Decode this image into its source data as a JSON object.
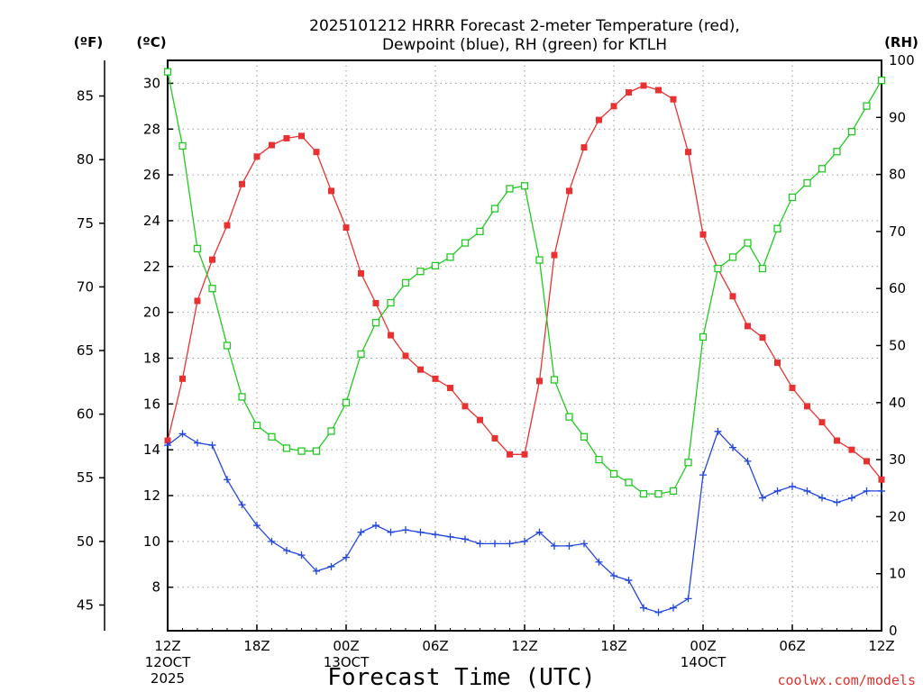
{
  "chart_data": {
    "type": "line",
    "title_lines": [
      "2025101212 HRRR Forecast 2-meter Temperature (red),",
      "Dewpoint (blue), RH (green) for KTLH"
    ],
    "xlabel": "Forecast Time (UTC)",
    "credit": "coolwx.com/models",
    "unit_labels": {
      "f": "(ºF)",
      "c": "(ºC)",
      "rh": "(RH)"
    },
    "x_range": [
      0,
      48
    ],
    "x_ticks": [
      {
        "h": 0,
        "lines": [
          "12Z",
          "12OCT",
          "2025"
        ]
      },
      {
        "h": 6,
        "lines": [
          "18Z"
        ]
      },
      {
        "h": 12,
        "lines": [
          "00Z",
          "13OCT"
        ]
      },
      {
        "h": 18,
        "lines": [
          "06Z"
        ]
      },
      {
        "h": 24,
        "lines": [
          "12Z"
        ]
      },
      {
        "h": 30,
        "lines": [
          "18Z"
        ]
      },
      {
        "h": 36,
        "lines": [
          "00Z",
          "14OCT"
        ]
      },
      {
        "h": 42,
        "lines": [
          "06Z"
        ]
      },
      {
        "h": 48,
        "lines": [
          "12Z"
        ]
      }
    ],
    "ylim_c": [
      6.1,
      31.0
    ],
    "c_ticks": [
      "8",
      "10",
      "12",
      "14",
      "16",
      "18",
      "20",
      "22",
      "24",
      "26",
      "28",
      "30"
    ],
    "f_ticks": [
      "45",
      "50",
      "55",
      "60",
      "65",
      "70",
      "75",
      "80",
      "85"
    ],
    "ylim_rh": [
      0,
      100
    ],
    "rh_ticks": [
      "0",
      "10",
      "20",
      "30",
      "40",
      "50",
      "60",
      "70",
      "80",
      "90",
      "100"
    ],
    "grid": true,
    "series": [
      {
        "name": "2-meter Temperature",
        "axis": "c",
        "color": "#e83232",
        "marker": "filled-square",
        "values": [
          14.4,
          17.1,
          20.5,
          22.3,
          23.8,
          25.6,
          26.8,
          27.3,
          27.6,
          27.7,
          27.0,
          25.3,
          23.7,
          21.7,
          20.4,
          19.0,
          18.1,
          17.5,
          17.1,
          16.7,
          15.9,
          15.3,
          14.5,
          13.8,
          13.8,
          17.0,
          22.5,
          25.3,
          27.2,
          28.4,
          29.0,
          29.6,
          29.9,
          29.7,
          29.3,
          27.0,
          23.4,
          21.9,
          20.7,
          19.4,
          18.9,
          17.8,
          16.7,
          15.9,
          15.2,
          14.4,
          14.0,
          13.5,
          12.7
        ]
      },
      {
        "name": "Dewpoint",
        "axis": "c",
        "color": "#2246dd",
        "marker": "plus",
        "values": [
          14.2,
          14.7,
          14.3,
          14.2,
          12.7,
          11.6,
          10.7,
          10.0,
          9.6,
          9.4,
          8.7,
          8.9,
          9.3,
          10.4,
          10.7,
          10.4,
          10.5,
          10.4,
          10.3,
          10.2,
          10.1,
          9.9,
          9.9,
          9.9,
          10.0,
          10.4,
          9.8,
          9.8,
          9.9,
          9.1,
          8.5,
          8.3,
          7.1,
          6.9,
          7.1,
          7.5,
          12.9,
          14.8,
          14.1,
          13.5,
          11.9,
          12.2,
          12.4,
          12.2,
          11.9,
          11.7,
          11.9,
          12.2,
          12.2
        ]
      },
      {
        "name": "RH",
        "axis": "rh",
        "color": "#22c922",
        "marker": "open-square",
        "values": [
          98,
          85,
          67,
          60,
          50,
          41,
          36,
          34,
          32,
          31.5,
          31.5,
          35,
          40,
          48.5,
          54,
          57.5,
          61,
          63,
          64,
          65.5,
          68,
          70,
          74,
          77.5,
          78,
          65,
          44,
          37.5,
          34,
          30,
          27.5,
          26,
          24,
          24,
          24.5,
          29.5,
          51.5,
          63.5,
          65.5,
          68,
          63.5,
          70.5,
          76,
          78.5,
          81,
          84,
          87.5,
          92,
          96.5
        ]
      }
    ]
  }
}
